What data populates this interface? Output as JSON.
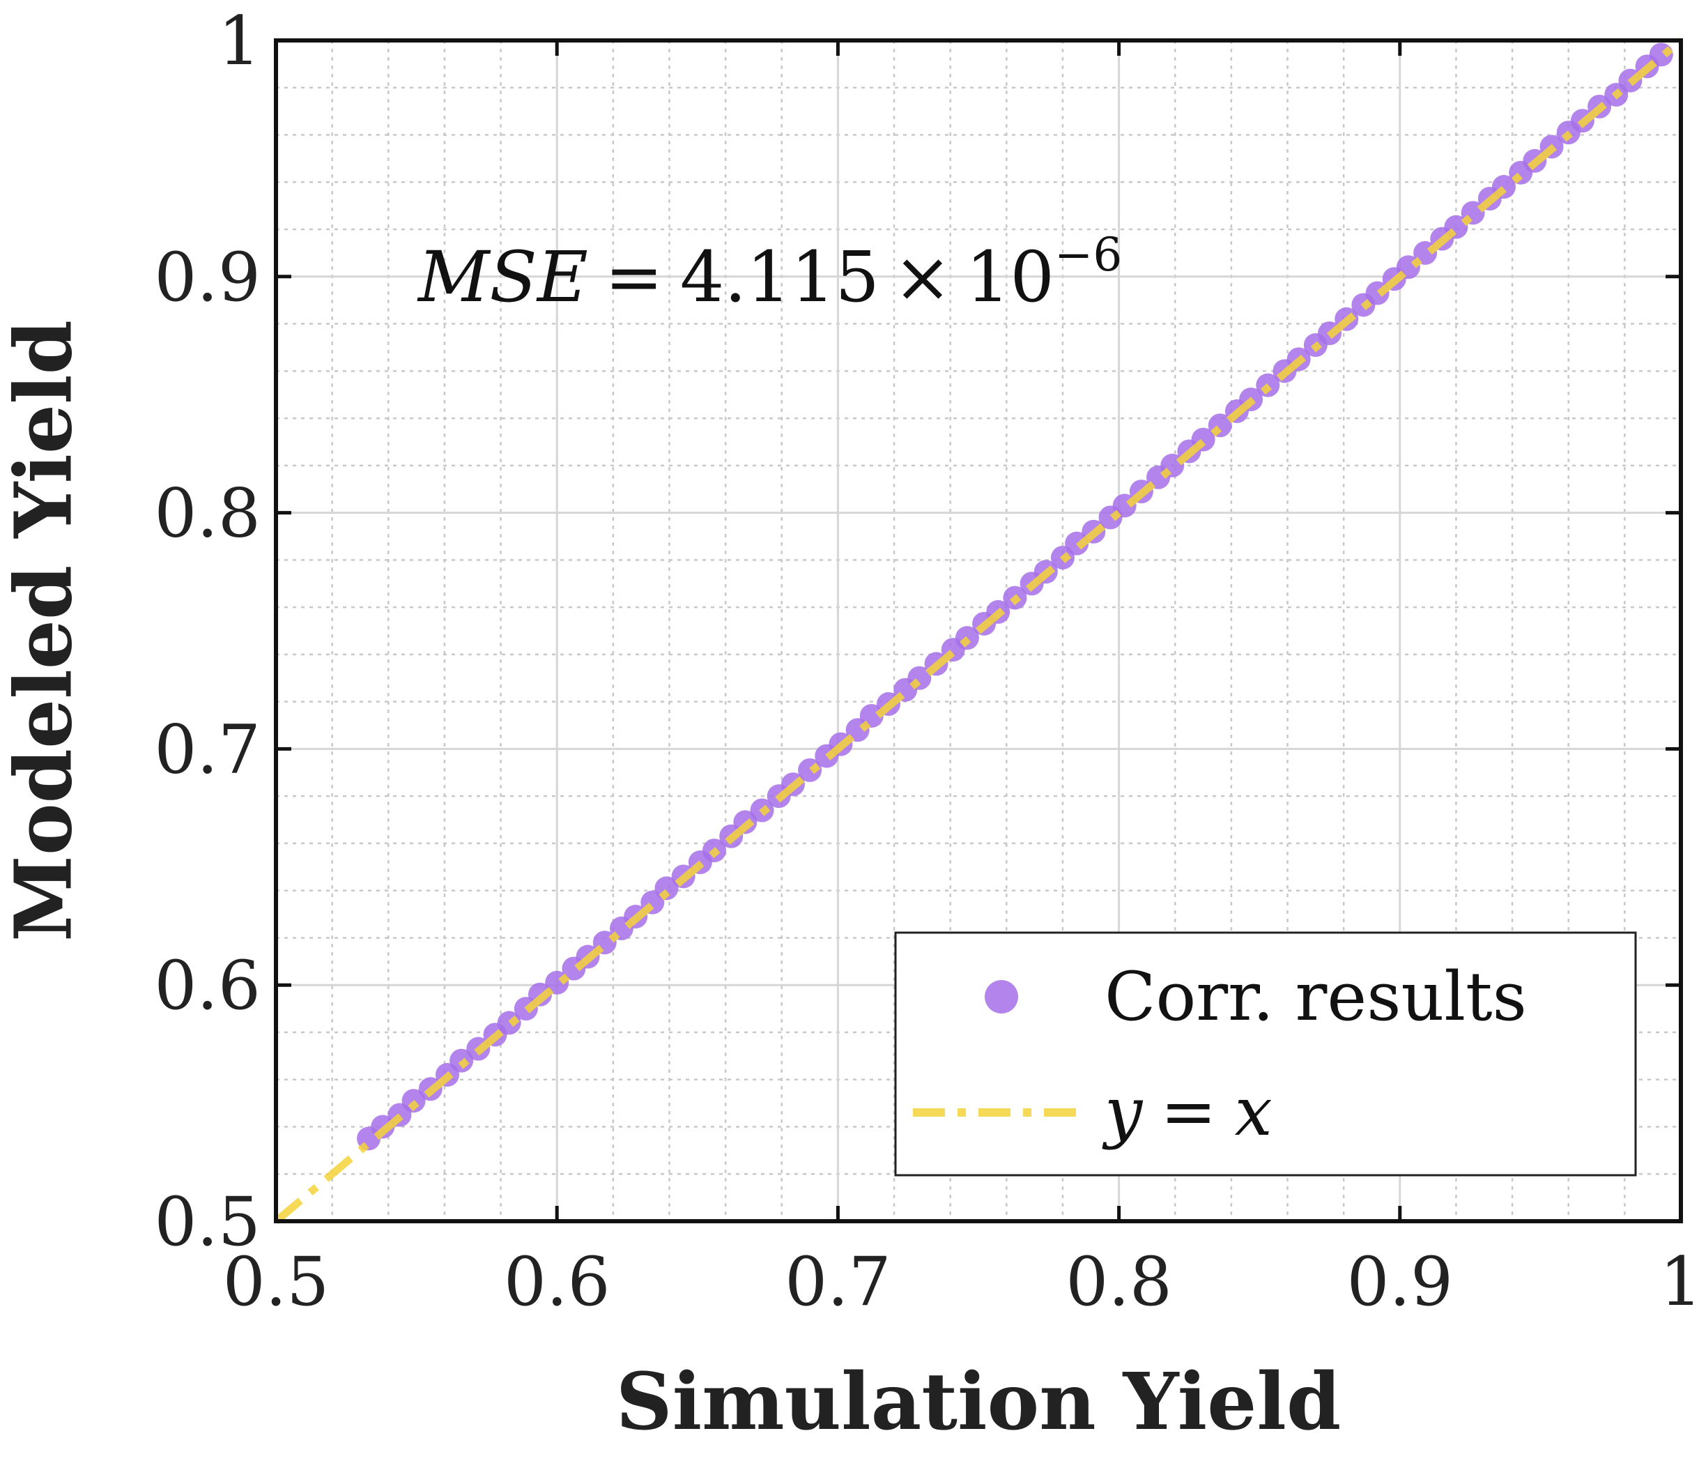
{
  "chart_data": {
    "type": "scatter",
    "title": "",
    "xlabel": "Simulation Yield",
    "ylabel": "Modeled Yield",
    "xlim": [
      0.5,
      1.0
    ],
    "ylim": [
      0.5,
      1.0
    ],
    "xticks": [
      0.5,
      0.6,
      0.7,
      0.8,
      0.9,
      1.0
    ],
    "yticks": [
      0.5,
      0.6,
      0.7,
      0.8,
      0.9,
      1.0
    ],
    "xtick_labels": [
      "0.5",
      "0.6",
      "0.7",
      "0.8",
      "0.9",
      "1"
    ],
    "ytick_labels": [
      "0.5",
      "0.6",
      "0.7",
      "0.8",
      "0.9",
      "1"
    ],
    "grid": true,
    "minor_grid": true,
    "legend_position": "bottom-right",
    "annotation": {
      "lhs": "MSE",
      "mantissa": "4.115",
      "times": "×",
      "base": "10",
      "exponent": "−6"
    },
    "series": [
      {
        "name": "Corr. results",
        "kind": "scatter",
        "color": "#a66ee8",
        "x": [
          0.533,
          0.538,
          0.544,
          0.549,
          0.555,
          0.561,
          0.566,
          0.572,
          0.578,
          0.583,
          0.589,
          0.594,
          0.6,
          0.606,
          0.611,
          0.617,
          0.623,
          0.628,
          0.634,
          0.639,
          0.645,
          0.651,
          0.656,
          0.662,
          0.667,
          0.673,
          0.679,
          0.684,
          0.69,
          0.696,
          0.701,
          0.707,
          0.712,
          0.718,
          0.724,
          0.729,
          0.735,
          0.741,
          0.746,
          0.752,
          0.757,
          0.763,
          0.769,
          0.774,
          0.78,
          0.785,
          0.791,
          0.797,
          0.802,
          0.808,
          0.814,
          0.819,
          0.825,
          0.83,
          0.836,
          0.842,
          0.847,
          0.853,
          0.859,
          0.864,
          0.87,
          0.875,
          0.881,
          0.887,
          0.892,
          0.898,
          0.903,
          0.909,
          0.915,
          0.92,
          0.926,
          0.932,
          0.937,
          0.943,
          0.948,
          0.954,
          0.96,
          0.965,
          0.971,
          0.977,
          0.982,
          0.988,
          0.993
        ],
        "y": [
          0.535,
          0.54,
          0.545,
          0.551,
          0.556,
          0.562,
          0.568,
          0.573,
          0.579,
          0.584,
          0.59,
          0.596,
          0.601,
          0.607,
          0.612,
          0.618,
          0.624,
          0.629,
          0.635,
          0.641,
          0.646,
          0.652,
          0.657,
          0.663,
          0.669,
          0.674,
          0.68,
          0.685,
          0.691,
          0.697,
          0.702,
          0.708,
          0.714,
          0.719,
          0.725,
          0.73,
          0.736,
          0.742,
          0.747,
          0.753,
          0.758,
          0.764,
          0.77,
          0.775,
          0.781,
          0.787,
          0.792,
          0.798,
          0.803,
          0.809,
          0.815,
          0.82,
          0.826,
          0.831,
          0.837,
          0.843,
          0.848,
          0.854,
          0.86,
          0.865,
          0.871,
          0.876,
          0.882,
          0.888,
          0.893,
          0.899,
          0.904,
          0.91,
          0.916,
          0.921,
          0.927,
          0.933,
          0.938,
          0.944,
          0.949,
          0.955,
          0.961,
          0.966,
          0.972,
          0.977,
          0.983,
          0.989,
          0.994
        ]
      },
      {
        "name": "y = x",
        "kind": "line",
        "style": "dash-dot",
        "color": "#f5d238",
        "x": [
          0.5,
          1.0
        ],
        "y": [
          0.5,
          1.0
        ]
      }
    ],
    "legend": [
      {
        "label": "Corr. results",
        "marker": "circle",
        "color": "#a66ee8"
      },
      {
        "label_var1": "y",
        "label_eq": "=",
        "label_var2": "x",
        "marker": "dash-dot",
        "color": "#f5d238"
      }
    ]
  }
}
